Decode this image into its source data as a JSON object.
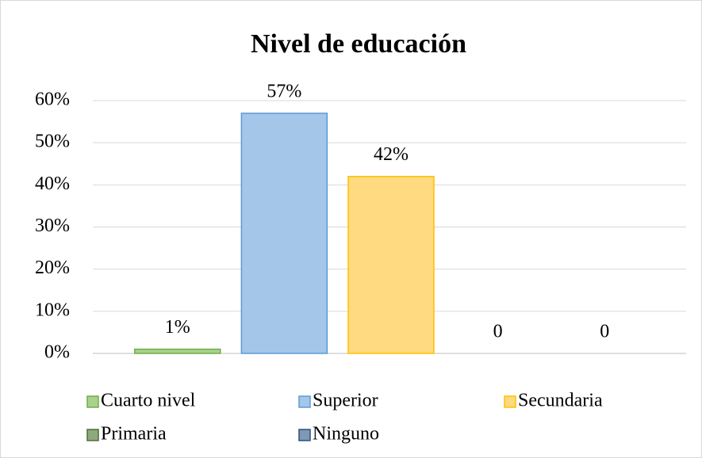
{
  "chart_data": {
    "type": "bar",
    "title": "Nivel de educación",
    "series": [
      {
        "name": "Cuarto nivel",
        "color": "#a9d18e",
        "border": "#70ad47",
        "values": [
          1
        ],
        "value_labels": [
          "1%"
        ]
      },
      {
        "name": "Superior",
        "color": "#a4c6e8",
        "border": "#5b9bd5",
        "values": [
          57
        ],
        "value_labels": [
          "57%"
        ]
      },
      {
        "name": "Secundaria",
        "color": "#ffda80",
        "border": "#ffc000",
        "values": [
          42
        ],
        "value_labels": [
          "42%"
        ]
      },
      {
        "name": "Primaria",
        "color": "#8ea97c",
        "border": "#4f6b3e",
        "values": [
          0
        ],
        "value_labels": [
          "0"
        ]
      },
      {
        "name": "Ninguno",
        "color": "#7f98b8",
        "border": "#2f4f7a",
        "values": [
          0
        ],
        "value_labels": [
          "0"
        ]
      }
    ],
    "ylim": [
      0,
      60
    ],
    "yticks": [
      {
        "value": 0,
        "label": "0%"
      },
      {
        "value": 10,
        "label": "10%"
      },
      {
        "value": 20,
        "label": "20%"
      },
      {
        "value": 30,
        "label": "30%"
      },
      {
        "value": 40,
        "label": "40%"
      },
      {
        "value": 50,
        "label": "50%"
      },
      {
        "value": 60,
        "label": "60%"
      }
    ],
    "grid": true,
    "legend": "bottom"
  }
}
